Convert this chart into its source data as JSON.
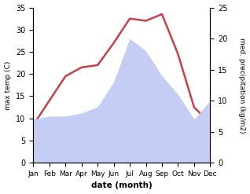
{
  "months": [
    "Jan",
    "Feb",
    "Mar",
    "Apr",
    "May",
    "Jun",
    "Jul",
    "Aug",
    "Sep",
    "Oct",
    "Nov",
    "Dec"
  ],
  "temperature": [
    8.5,
    14.0,
    19.5,
    21.5,
    22.0,
    27.0,
    32.5,
    32.0,
    33.5,
    24.5,
    12.5,
    9.0
  ],
  "precipitation": [
    7.0,
    7.5,
    7.5,
    8.0,
    9.0,
    13.0,
    20.0,
    18.0,
    14.0,
    11.0,
    7.0,
    10.0
  ],
  "temp_color": "#c8404a",
  "precip_fill_color": "#c5cdf5",
  "xlabel": "date (month)",
  "ylabel_left": "max temp (C)",
  "ylabel_right": "med. precipitation (kg/m2)",
  "ylim_left": [
    0,
    35
  ],
  "ylim_right": [
    0,
    25
  ],
  "yticks_left": [
    0,
    5,
    10,
    15,
    20,
    25,
    30,
    35
  ],
  "yticks_right": [
    0,
    5,
    10,
    15,
    20,
    25
  ],
  "background_color": "#ffffff",
  "line_width": 1.8,
  "figsize": [
    3.18,
    2.47
  ],
  "dpi": 100
}
